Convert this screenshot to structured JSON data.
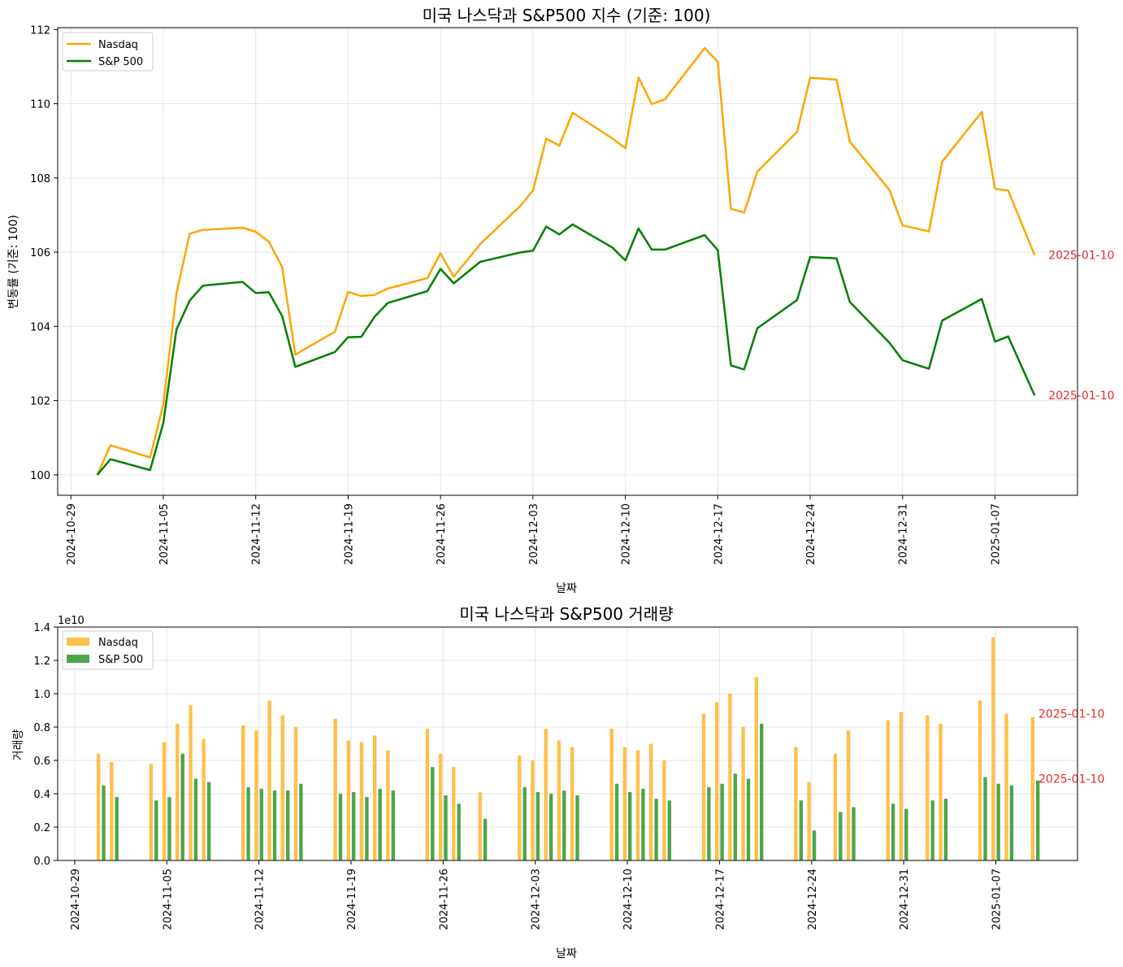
{
  "chart_data": [
    {
      "type": "line",
      "title": "미국 나스닥과 S&P500 지수 (기준: 100)",
      "xlabel": "날짜",
      "ylabel": "변동률 (기준: 100)",
      "ylim": [
        99.45,
        112.05
      ],
      "xlim": [
        "2024-10-28T00:00",
        "2025-01-13T06:00"
      ],
      "grid": true,
      "legend_position": "upper-left",
      "x_ticks": [
        "2024-10-29",
        "2024-11-05",
        "2024-11-12",
        "2024-11-19",
        "2024-11-26",
        "2024-12-03",
        "2024-12-10",
        "2024-12-17",
        "2024-12-24",
        "2024-12-31",
        "2025-01-07"
      ],
      "y_ticks": [
        "100",
        "102",
        "104",
        "106",
        "108",
        "110",
        "112"
      ],
      "dates": [
        "2024-10-31",
        "2024-11-01",
        "2024-11-04",
        "2024-11-05",
        "2024-11-06",
        "2024-11-07",
        "2024-11-08",
        "2024-11-11",
        "2024-11-12",
        "2024-11-13",
        "2024-11-14",
        "2024-11-15",
        "2024-11-18",
        "2024-11-19",
        "2024-11-20",
        "2024-11-21",
        "2024-11-22",
        "2024-11-25",
        "2024-11-26",
        "2024-11-27",
        "2024-11-29",
        "2024-12-02",
        "2024-12-03",
        "2024-12-04",
        "2024-12-05",
        "2024-12-06",
        "2024-12-09",
        "2024-12-10",
        "2024-12-11",
        "2024-12-12",
        "2024-12-13",
        "2024-12-16",
        "2024-12-17",
        "2024-12-18",
        "2024-12-19",
        "2024-12-20",
        "2024-12-23",
        "2024-12-24",
        "2024-12-26",
        "2024-12-27",
        "2024-12-30",
        "2024-12-31",
        "2025-01-02",
        "2025-01-03",
        "2025-01-06",
        "2025-01-07",
        "2025-01-08",
        "2025-01-10"
      ],
      "series": [
        {
          "name": "Nasdaq",
          "color": "#ffa500",
          "values": [
            100.0,
            100.8,
            100.47,
            101.9,
            104.9,
            106.5,
            106.6,
            106.66,
            106.55,
            106.28,
            105.6,
            103.24,
            103.86,
            104.93,
            104.82,
            104.85,
            105.02,
            105.3,
            105.97,
            105.34,
            106.22,
            107.23,
            107.66,
            109.06,
            108.87,
            109.76,
            109.07,
            108.8,
            110.71,
            109.99,
            110.12,
            111.5,
            111.13,
            107.17,
            107.07,
            108.17,
            109.24,
            110.7,
            110.65,
            108.98,
            107.68,
            106.72,
            106.56,
            108.44,
            109.78,
            107.71,
            107.66,
            105.92
          ]
        },
        {
          "name": "S&P 500",
          "color": "#008000",
          "values": [
            100.0,
            100.42,
            100.13,
            101.4,
            103.92,
            104.7,
            105.1,
            105.2,
            104.9,
            104.92,
            104.28,
            102.91,
            103.31,
            103.71,
            103.72,
            104.26,
            104.63,
            104.95,
            105.55,
            105.16,
            105.74,
            105.99,
            106.04,
            106.69,
            106.48,
            106.75,
            106.13,
            105.78,
            106.64,
            106.07,
            106.07,
            106.46,
            106.06,
            102.95,
            102.84,
            103.95,
            104.71,
            105.87,
            105.83,
            104.66,
            103.56,
            103.09,
            102.86,
            104.16,
            104.74,
            103.59,
            103.73,
            102.14
          ]
        }
      ],
      "annotations": [
        {
          "text": "2025-01-10",
          "x": "2025-01-10",
          "y": 105.92
        },
        {
          "text": "2025-01-10",
          "x": "2025-01-10",
          "y": 102.14
        }
      ]
    },
    {
      "type": "bar",
      "title": "미국 나스닥과 S&P500 거래량",
      "xlabel": "날짜",
      "ylabel": "거래량",
      "y_offset_label": "1e10",
      "ylim": [
        0,
        1.4
      ],
      "grid": true,
      "legend_position": "upper-left",
      "x_ticks": [
        "2024-10-29",
        "2024-11-05",
        "2024-11-12",
        "2024-11-19",
        "2024-11-26",
        "2024-12-03",
        "2024-12-10",
        "2024-12-17",
        "2024-12-24",
        "2024-12-31",
        "2025-01-07"
      ],
      "y_ticks": [
        "0.0",
        "0.2",
        "0.4",
        "0.6",
        "0.8",
        "1.0",
        "1.2",
        "1.4"
      ],
      "dates": [
        "2024-10-31",
        "2024-11-01",
        "2024-11-04",
        "2024-11-05",
        "2024-11-06",
        "2024-11-07",
        "2024-11-08",
        "2024-11-11",
        "2024-11-12",
        "2024-11-13",
        "2024-11-14",
        "2024-11-15",
        "2024-11-18",
        "2024-11-19",
        "2024-11-20",
        "2024-11-21",
        "2024-11-22",
        "2024-11-25",
        "2024-11-26",
        "2024-11-27",
        "2024-11-29",
        "2024-12-02",
        "2024-12-03",
        "2024-12-04",
        "2024-12-05",
        "2024-12-06",
        "2024-12-09",
        "2024-12-10",
        "2024-12-11",
        "2024-12-12",
        "2024-12-13",
        "2024-12-16",
        "2024-12-17",
        "2024-12-18",
        "2024-12-19",
        "2024-12-20",
        "2024-12-23",
        "2024-12-24",
        "2024-12-26",
        "2024-12-27",
        "2024-12-30",
        "2024-12-31",
        "2025-01-02",
        "2025-01-03",
        "2025-01-06",
        "2025-01-07",
        "2025-01-08",
        "2025-01-10"
      ],
      "series": [
        {
          "name": "Nasdaq",
          "color": "#ffa500",
          "opacity": 0.7,
          "values": [
            0.64,
            0.59,
            0.58,
            0.71,
            0.82,
            0.93,
            0.73,
            0.81,
            0.78,
            0.96,
            0.87,
            0.8,
            0.85,
            0.72,
            0.71,
            0.75,
            0.66,
            0.79,
            0.64,
            0.56,
            0.41,
            0.63,
            0.6,
            0.79,
            0.72,
            0.68,
            0.79,
            0.68,
            0.66,
            0.7,
            0.6,
            0.88,
            0.95,
            1.0,
            0.8,
            1.1,
            0.68,
            0.47,
            0.64,
            0.78,
            0.84,
            0.89,
            0.87,
            0.82,
            0.96,
            1.34,
            0.88,
            0.86
          ]
        },
        {
          "name": "S&P 500",
          "color": "#008000",
          "opacity": 0.7,
          "values": [
            0.45,
            0.38,
            0.36,
            0.38,
            0.64,
            0.49,
            0.47,
            0.44,
            0.43,
            0.42,
            0.42,
            0.46,
            0.4,
            0.41,
            0.38,
            0.43,
            0.42,
            0.56,
            0.39,
            0.34,
            0.25,
            0.44,
            0.41,
            0.4,
            0.42,
            0.39,
            0.46,
            0.41,
            0.43,
            0.37,
            0.36,
            0.44,
            0.46,
            0.52,
            0.49,
            0.82,
            0.36,
            0.18,
            0.29,
            0.32,
            0.34,
            0.31,
            0.36,
            0.37,
            0.5,
            0.46,
            0.45,
            0.48
          ]
        }
      ],
      "annotations": [
        {
          "text": "2025-01-10",
          "x": "2025-01-10",
          "y": 0.88
        },
        {
          "text": "2025-01-10",
          "x": "2025-01-10",
          "y": 0.49
        }
      ]
    }
  ]
}
